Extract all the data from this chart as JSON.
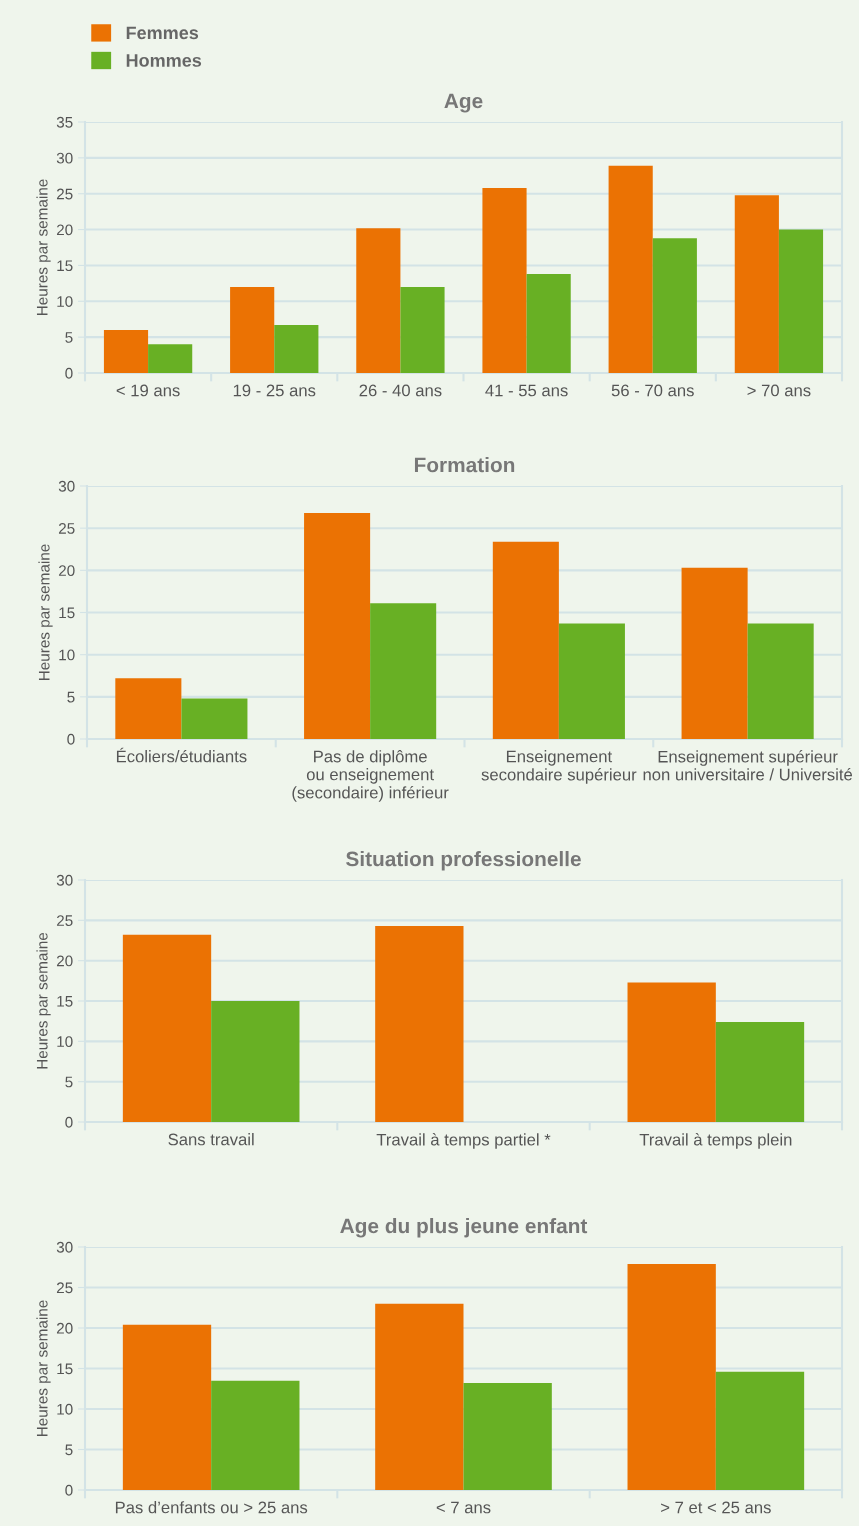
{
  "chart_data": [
    {
      "type": "bar",
      "title": "Age",
      "ylabel": "Heures par semaine",
      "categories": [
        "< 19 ans",
        "19 - 25 ans",
        "26 - 40 ans",
        "41 - 55 ans",
        "56 - 70 ans",
        "> 70 ans"
      ],
      "series": [
        {
          "name": "Femmes",
          "color": "#eb7203",
          "values": [
            6,
            12,
            20.2,
            25.8,
            28.9,
            24.8
          ]
        },
        {
          "name": "Hommes",
          "color": "#68b024",
          "values": [
            4,
            6.7,
            12,
            13.8,
            18.8,
            20
          ]
        }
      ],
      "ylim": [
        0,
        35
      ],
      "yticks": [
        0,
        5,
        10,
        15,
        20,
        25,
        30,
        35
      ],
      "grid": "y",
      "legend": "top left"
    },
    {
      "type": "bar",
      "title": "Formation",
      "ylabel": "Heures par semaine",
      "categories": [
        "Écoliers/étudiants",
        "Pas de diplôme\nou enseignement\n(secondaire) inférieur",
        "Enseignement\nsecondaire supérieur",
        "Enseignement supérieur\nnon universitaire / Université"
      ],
      "series": [
        {
          "color": "#eb7203",
          "values": [
            7.2,
            26.8,
            23.4,
            20.3
          ]
        },
        {
          "color": "#68b024",
          "values": [
            4.8,
            16.1,
            13.7,
            13.7
          ]
        }
      ],
      "ylim": [
        0,
        30
      ],
      "yticks": [
        0,
        5,
        10,
        15,
        20,
        25,
        30
      ],
      "grid": "y"
    },
    {
      "type": "bar",
      "title": "Situation professionelle",
      "ylabel": "Heures par semaine",
      "categories": [
        "Sans travail",
        "Travail à temps partiel *",
        "Travail à temps plein"
      ],
      "series": [
        {
          "color": "#eb7203",
          "values": [
            23.2,
            24.3,
            17.3
          ]
        },
        {
          "color": "#68b024",
          "values": [
            15,
            null,
            12.4
          ]
        }
      ],
      "ylim": [
        0,
        30
      ],
      "yticks": [
        0,
        5,
        10,
        15,
        20,
        25,
        30
      ],
      "grid": "y"
    },
    {
      "type": "bar",
      "title": "Age du plus jeune enfant",
      "ylabel": "Heures par semaine",
      "categories": [
        "Pas d’enfants ou > 25 ans",
        "< 7 ans",
        "> 7 et < 25 ans"
      ],
      "series": [
        {
          "color": "#eb7203",
          "values": [
            20.4,
            23,
            27.9
          ]
        },
        {
          "color": "#68b024",
          "values": [
            13.5,
            13.2,
            14.6
          ]
        }
      ],
      "ylim": [
        0,
        30
      ],
      "yticks": [
        0,
        5,
        10,
        15,
        20,
        25,
        30
      ],
      "grid": "y"
    }
  ]
}
